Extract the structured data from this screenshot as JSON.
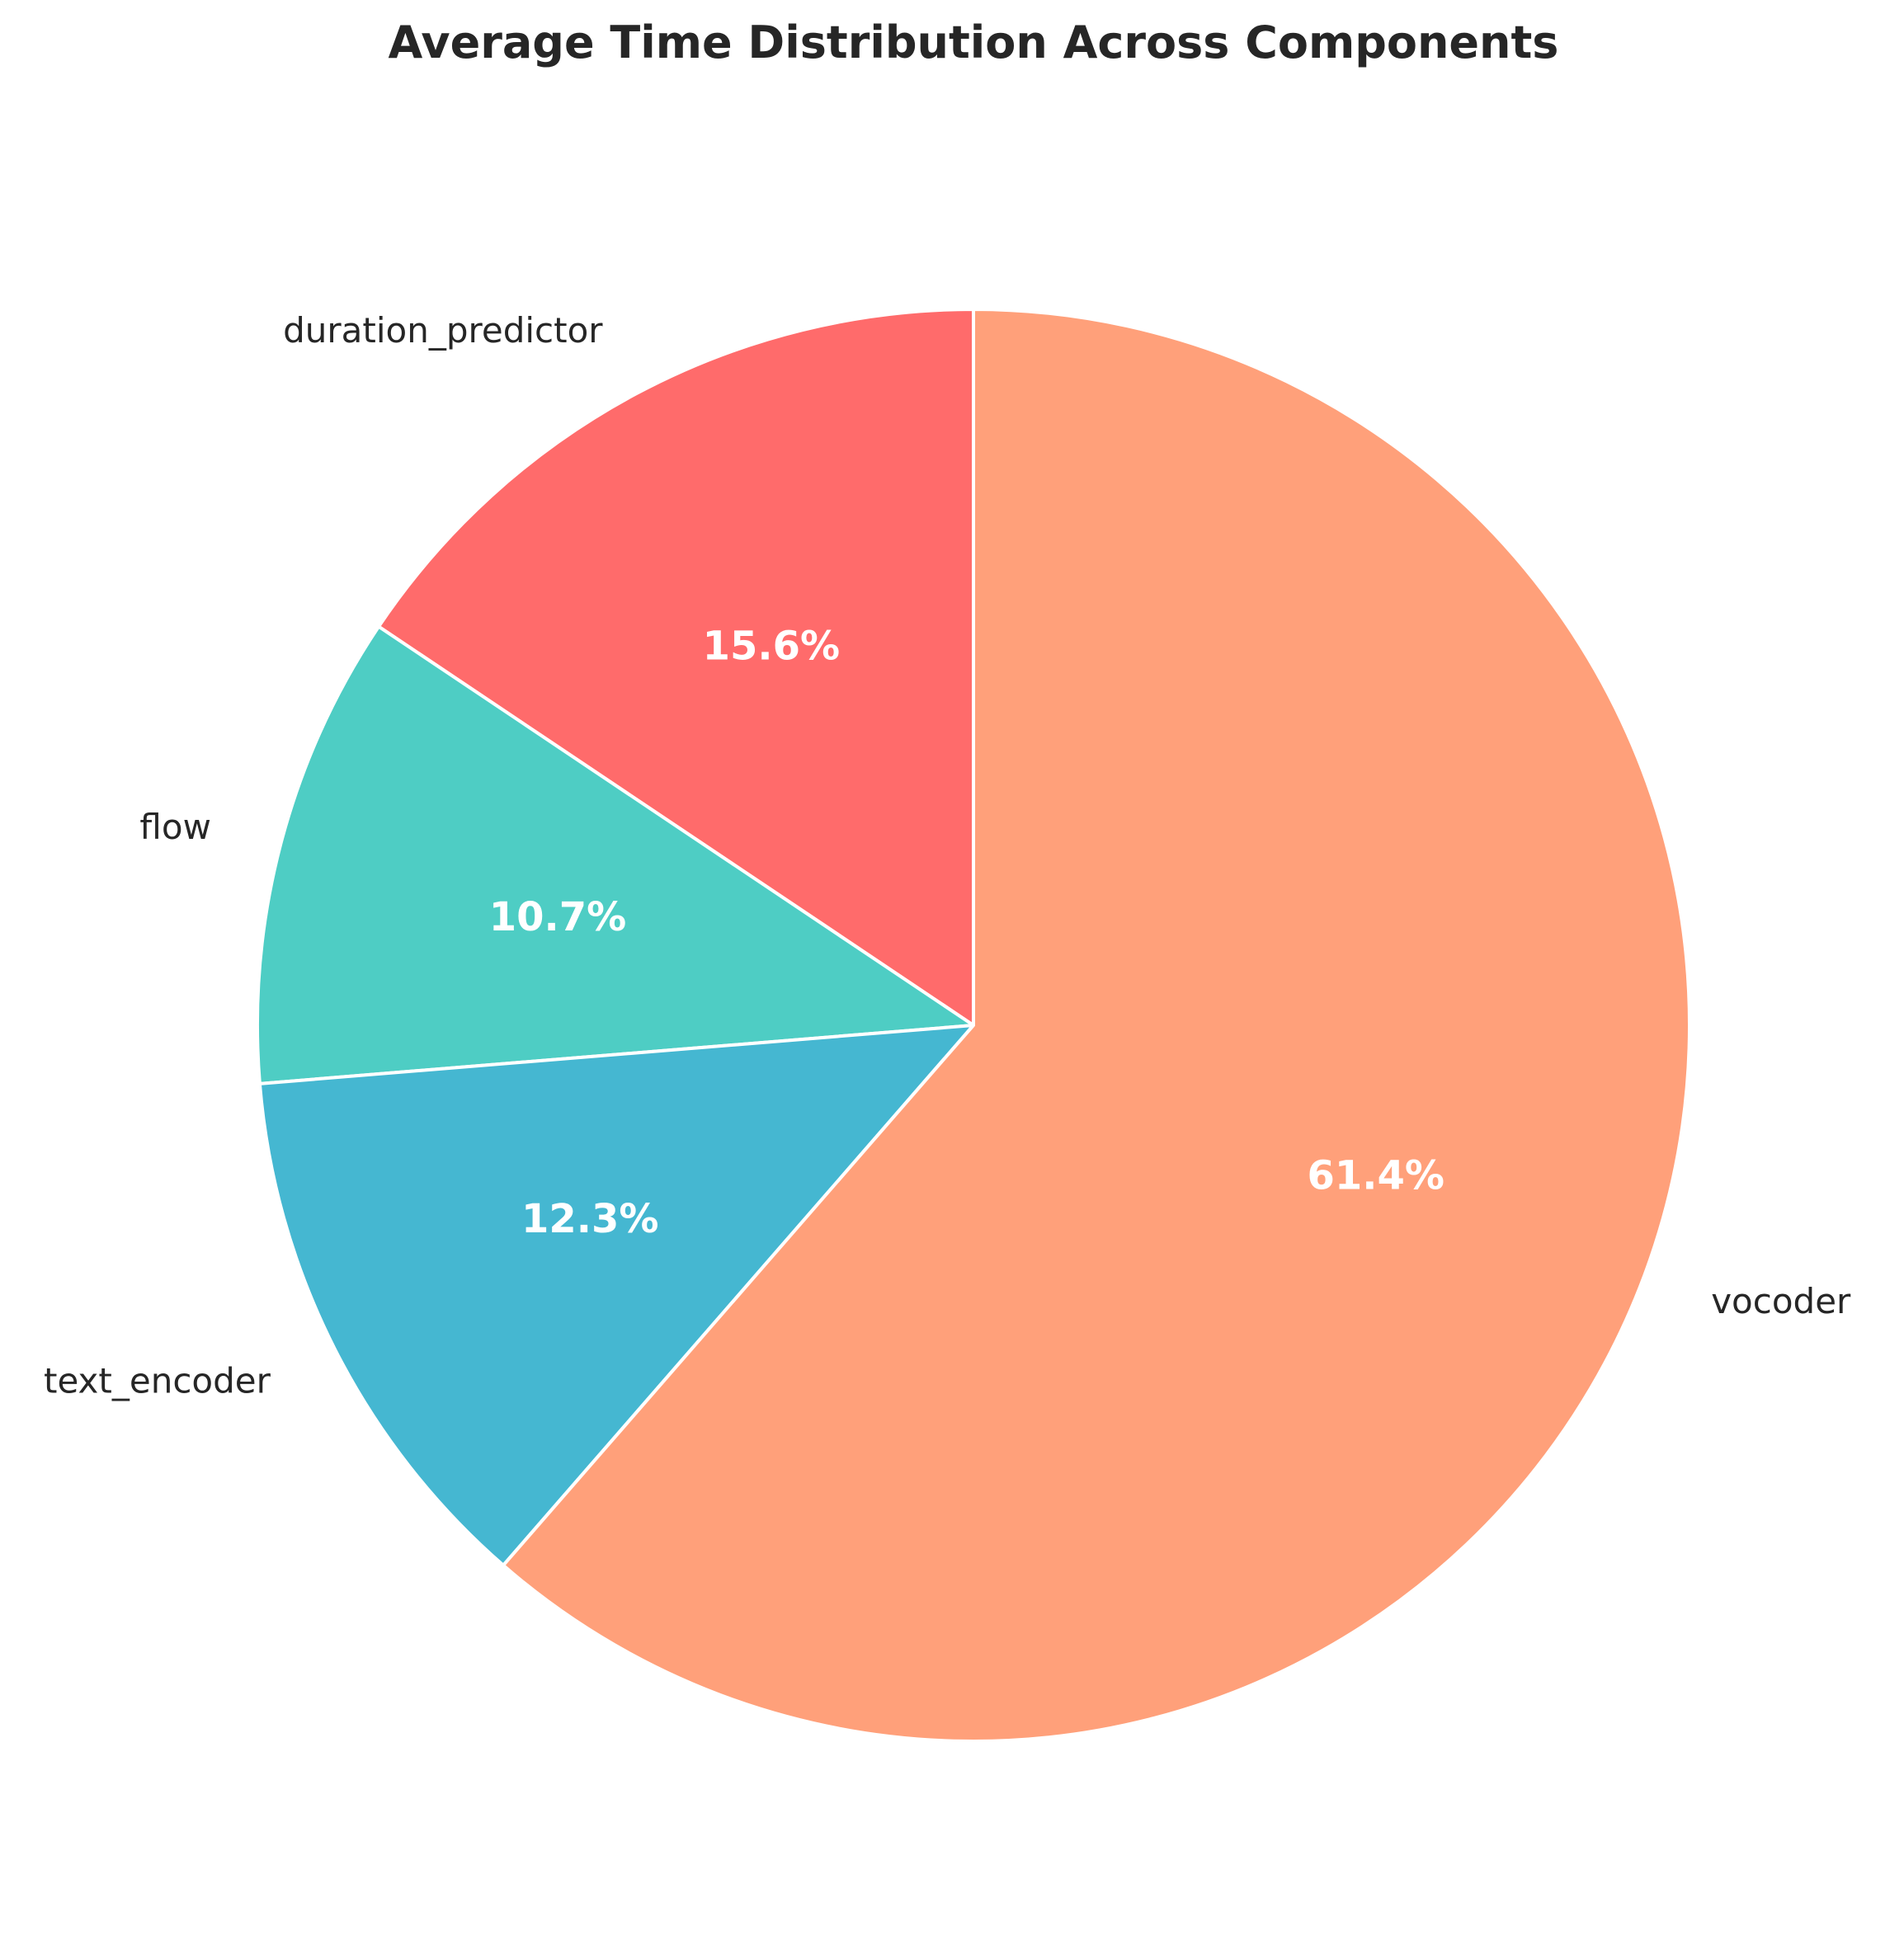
{
  "chart_data": {
    "type": "pie",
    "title": "Average Time Distribution Across Components",
    "slices": [
      {
        "label": "duration_predictor",
        "value": 15.6,
        "pct_label": "15.6%",
        "color": "#FF6B6B"
      },
      {
        "label": "flow",
        "value": 10.7,
        "pct_label": "10.7%",
        "color": "#4ECDC4"
      },
      {
        "label": "text_encoder",
        "value": 12.3,
        "pct_label": "12.3%",
        "color": "#45B7D1"
      },
      {
        "label": "vocoder",
        "value": 61.4,
        "pct_label": "61.4%",
        "color": "#FFA07A"
      }
    ],
    "start_angle": 90,
    "direction": "counterclockwise"
  }
}
